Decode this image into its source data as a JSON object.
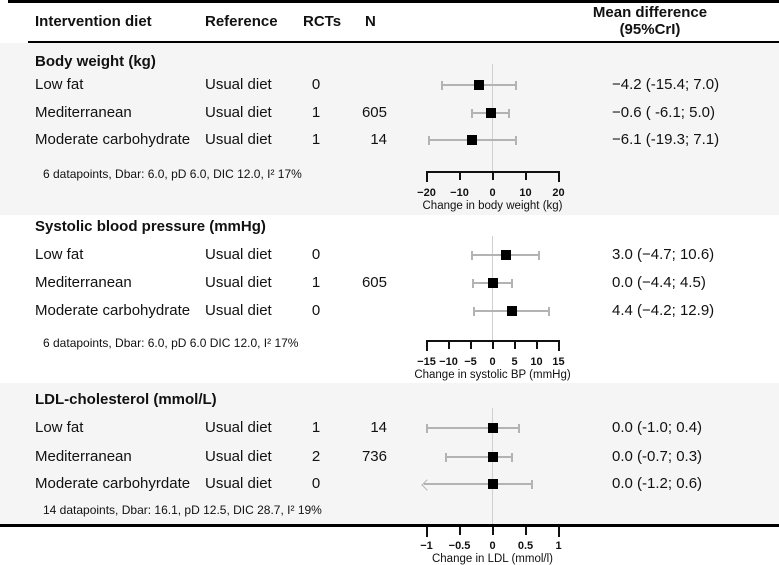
{
  "header": {
    "intervention": "Intervention diet",
    "reference": "Reference",
    "rcts": "RCTs",
    "n": "N",
    "mean_line1": "Mean difference",
    "mean_line2": "(95%CrI)"
  },
  "colors": {
    "band": "#f5f5f5",
    "ci": "#b3b3b3",
    "marker": "#000000",
    "zero_line": "#cfcfcf",
    "axis": "#111111"
  },
  "chart_data": {
    "type": "forest",
    "comparator_label": "Usual diet",
    "sections": [
      {
        "title": "Body weight (kg)",
        "shaded": true,
        "rows": [
          {
            "intervention": "Low fat",
            "reference": "Usual diet",
            "rcts": "0",
            "n": "",
            "estimate": -4.2,
            "ci_low": -15.4,
            "ci_high": 7.0,
            "display": "−4.2 (-15.4; 7.0)"
          },
          {
            "intervention": "Mediterranean",
            "reference": "Usual diet",
            "rcts": "1",
            "n": "605",
            "estimate": -0.6,
            "ci_low": -6.1,
            "ci_high": 5.0,
            "display": "−0.6 (  -6.1; 5.0)"
          },
          {
            "intervention": "Moderate carbohydrate",
            "reference": "Usual diet",
            "rcts": "1",
            "n": "14",
            "estimate": -6.1,
            "ci_low": -19.3,
            "ci_high": 7.1,
            "display": "−6.1 (-19.3; 7.1)"
          }
        ],
        "footnote": "6 datapoints, Dbar: 6.0, pD 6.0, DIC 12.0, I² 17%",
        "axis": {
          "min": -20,
          "max": 20,
          "ticks": [
            -20,
            -10,
            0,
            10,
            20
          ],
          "tick_labels": [
            "−20",
            "−10",
            "0",
            "10",
            "20"
          ],
          "label": "Change in body weight (kg)"
        }
      },
      {
        "title": "Systolic blood pressure (mmHg)",
        "shaded": false,
        "rows": [
          {
            "intervention": "Low fat",
            "reference": "Usual diet",
            "rcts": "0",
            "n": "",
            "estimate": 3.0,
            "ci_low": -4.7,
            "ci_high": 10.6,
            "display": "3.0 (−4.7; 10.6)"
          },
          {
            "intervention": "Mediterranean",
            "reference": "Usual diet",
            "rcts": "1",
            "n": "605",
            "estimate": 0.0,
            "ci_low": -4.4,
            "ci_high": 4.5,
            "display": "0.0 (−4.4;   4.5)"
          },
          {
            "intervention": "Moderate carbohydrate",
            "reference": "Usual diet",
            "rcts": "0",
            "n": "",
            "estimate": 4.4,
            "ci_low": -4.2,
            "ci_high": 12.9,
            "display": "4.4 (−4.2; 12.9)"
          }
        ],
        "footnote": "6 datapoints, Dbar: 6.0, pD 6.0 DIC 12.0, I² 17%",
        "axis": {
          "min": -15,
          "max": 15,
          "ticks": [
            -15,
            -10,
            -5,
            0,
            5,
            10,
            15
          ],
          "tick_labels": [
            "−15",
            "−10",
            "−5",
            "0",
            "5",
            "10",
            "15"
          ],
          "label": "Change in systolic BP (mmHg)"
        }
      },
      {
        "title": "LDL-cholesterol (mmol/L)",
        "shaded": true,
        "rows": [
          {
            "intervention": "Low fat",
            "reference": "Usual diet",
            "rcts": "1",
            "n": "14",
            "estimate": 0.0,
            "ci_low": -1.0,
            "ci_high": 0.4,
            "display": "0.0 (-1.0; 0.4)"
          },
          {
            "intervention": "Mediterranean",
            "reference": "Usual diet",
            "rcts": "2",
            "n": "736",
            "estimate": 0.0,
            "ci_low": -0.7,
            "ci_high": 0.3,
            "display": "0.0 (-0.7; 0.3)"
          },
          {
            "intervention": "Moderate carbohyrdate",
            "reference": "Usual diet",
            "rcts": "0",
            "n": "",
            "estimate": 0.0,
            "ci_low": -1.2,
            "ci_high": 0.6,
            "display": "0.0 (-1.2; 0.6)"
          }
        ],
        "footnote": "14 datapoints, Dbar: 16.1, pD 12.5, DIC 28.7, I² 19%",
        "axis": {
          "min": -1,
          "max": 1,
          "ticks": [
            -1,
            -0.5,
            0,
            0.5,
            1
          ],
          "tick_labels": [
            "−1",
            "−0.5",
            "0",
            "0.5",
            "1"
          ],
          "label": "Change in LDL (mmol/l)"
        }
      }
    ]
  }
}
